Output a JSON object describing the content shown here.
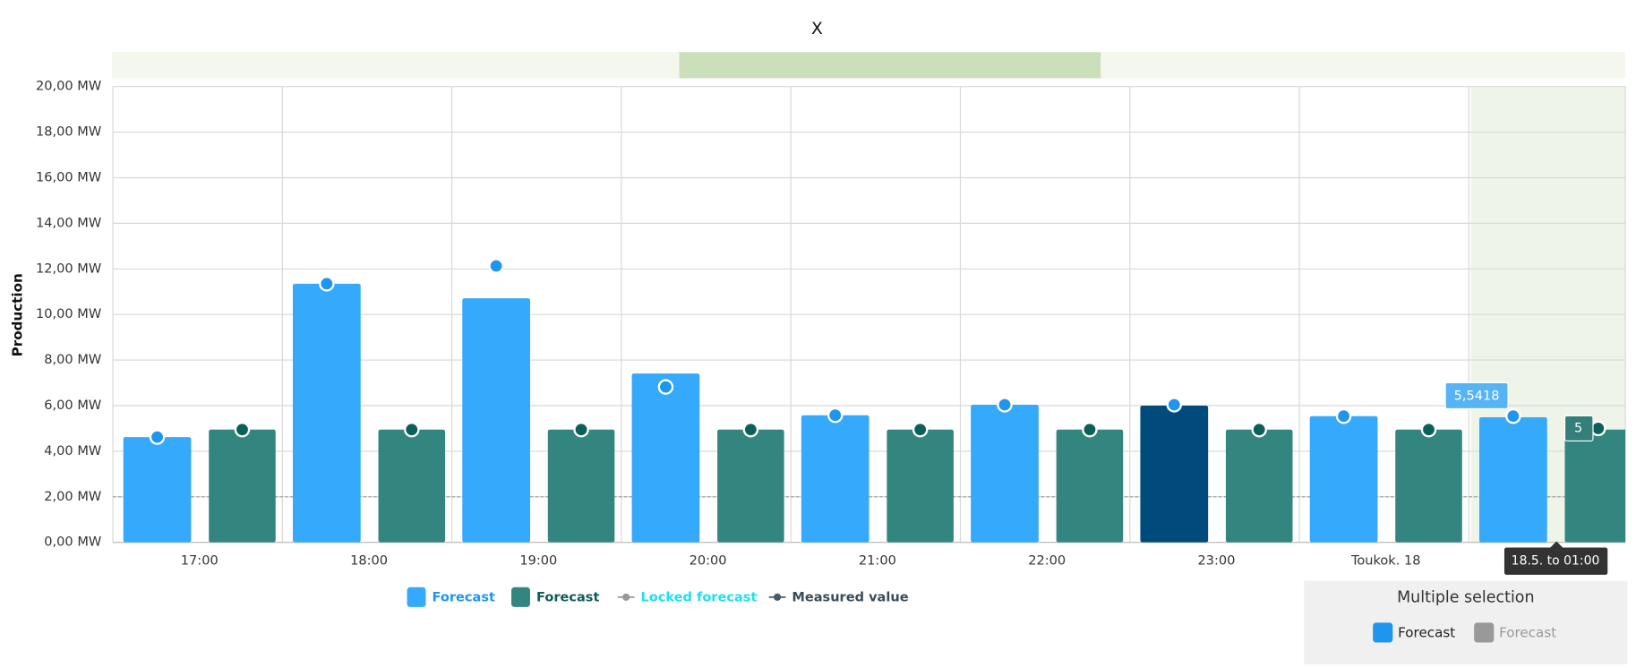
{
  "chart_data": {
    "type": "bar",
    "title": "X",
    "y_label": "Production",
    "categories": [
      "17:00",
      "18:00",
      "19:00",
      "20:00",
      "21:00",
      "22:00",
      "23:00",
      "Toukok. 18",
      null
    ],
    "series": [
      {
        "name": "Forecast",
        "kind": "bar",
        "color": "#35a9fb",
        "highlight_color": "#004b7c",
        "highlight_index": 6,
        "values": [
          4.62,
          11.35,
          10.71,
          7.41,
          5.58,
          6.04,
          6.0,
          5.54,
          5.49
        ]
      },
      {
        "name": "Forecast",
        "kind": "bar",
        "color": "#338680",
        "values": [
          4.95,
          4.95,
          4.95,
          4.95,
          4.95,
          4.95,
          4.95,
          4.95,
          4.95
        ]
      },
      {
        "name": "Locked forecast",
        "kind": "point",
        "color": "#1e96f0",
        "legend_color": "#999999",
        "text_color": "#1ee0f0",
        "values": [
          4.62,
          11.35,
          12.13,
          6.82,
          5.58,
          6.04,
          6.04,
          5.54,
          5.5418
        ],
        "value_labels": [
          null,
          null,
          null,
          null,
          null,
          null,
          null,
          null,
          "5,5418"
        ]
      },
      {
        "name": "Measured value",
        "kind": "point",
        "color": "#0d5f5a",
        "legend_color": "#4a5a68",
        "text_color": "#3b4b5a",
        "values": [
          4.95,
          4.95,
          4.95,
          4.95,
          4.95,
          4.95,
          4.95,
          4.95,
          5
        ]
      }
    ],
    "ylim": [
      0,
      20
    ],
    "yticks": [
      {
        "value": 0,
        "label": "0,00 MW"
      },
      {
        "value": 2,
        "label": "2,00 MW"
      },
      {
        "value": 4,
        "label": "4,00 MW"
      },
      {
        "value": 6,
        "label": "6,00 MW"
      },
      {
        "value": 8,
        "label": "8,00 MW"
      },
      {
        "value": 10,
        "label": "10,00 MW"
      },
      {
        "value": 12,
        "label": "12,00 MW"
      },
      {
        "value": 14,
        "label": "14,00 MW"
      },
      {
        "value": 16,
        "label": "16,00 MW"
      },
      {
        "value": 18,
        "label": "18,00 MW"
      },
      {
        "value": 20,
        "label": "20,00 MW"
      }
    ],
    "reference_line": 2,
    "grid": true,
    "tooltip_x_label": "18.5. to 01:00",
    "selection_panel": {
      "title": "Multiple selection",
      "items": [
        {
          "name": "Forecast",
          "color": "#1e96f0",
          "active": true
        },
        {
          "name": "Forecast",
          "color": "#999999",
          "active": false
        }
      ]
    }
  }
}
